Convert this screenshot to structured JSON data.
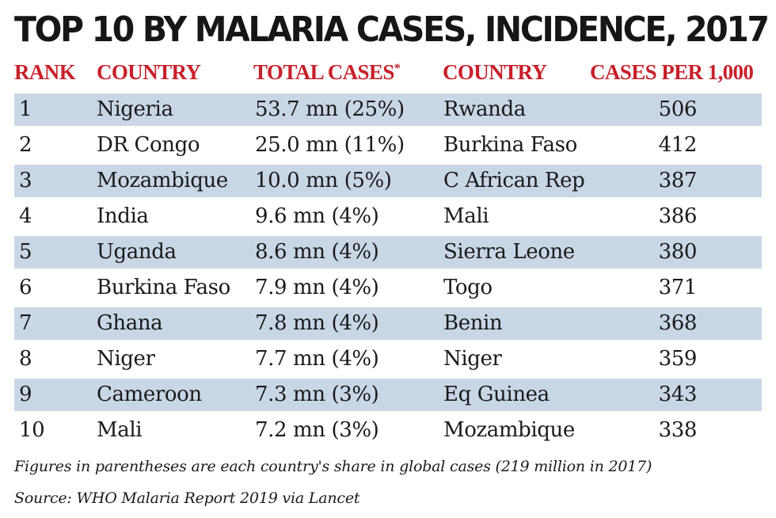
{
  "title": "TOP 10 BY MALARIA CASES, INCIDENCE, 2017",
  "headers": {
    "rank": "RANK",
    "country": "COUNTRY",
    "total_cases": "TOTAL CASES",
    "total_cases_mark": "*",
    "country2": "COUNTRY",
    "cases_per_1000": "CASES PER 1,000"
  },
  "rows": [
    {
      "rank": "1",
      "country": "Nigeria",
      "total": "53.7 mn (25%)",
      "country2": "Rwanda",
      "rate": "506"
    },
    {
      "rank": "2",
      "country": "DR Congo",
      "total": "25.0 mn (11%)",
      "country2": "Burkina Faso",
      "rate": "412"
    },
    {
      "rank": "3",
      "country": "Mozambique",
      "total": "10.0 mn (5%)",
      "country2": "C African Rep",
      "rate": "387"
    },
    {
      "rank": "4",
      "country": "India",
      "total": "9.6 mn (4%)",
      "country2": "Mali",
      "rate": "386"
    },
    {
      "rank": "5",
      "country": "Uganda",
      "total": "8.6 mn (4%)",
      "country2": "Sierra Leone",
      "rate": "380"
    },
    {
      "rank": "6",
      "country": "Burkina Faso",
      "total": "7.9 mn (4%)",
      "country2": "Togo",
      "rate": "371"
    },
    {
      "rank": "7",
      "country": "Ghana",
      "total": "7.8 mn (4%)",
      "country2": "Benin",
      "rate": "368"
    },
    {
      "rank": "8",
      "country": "Niger",
      "total": "7.7 mn (4%)",
      "country2": "Niger",
      "rate": "359"
    },
    {
      "rank": "9",
      "country": "Cameroon",
      "total": "7.3 mn (3%)",
      "country2": "Eq Guinea",
      "rate": "343"
    },
    {
      "rank": "10",
      "country": "Mali",
      "total": "7.2 mn (3%)",
      "country2": "Mozambique",
      "rate": "338"
    }
  ],
  "footnote": "Figures in parentheses are each country's share in global cases (219 million in 2017)",
  "source": "Source: WHO Malaria Report 2019 via Lancet",
  "colors": {
    "header_red": "#c8202a",
    "band_blue": "#c9d6e6",
    "text": "#1a1a1a"
  }
}
